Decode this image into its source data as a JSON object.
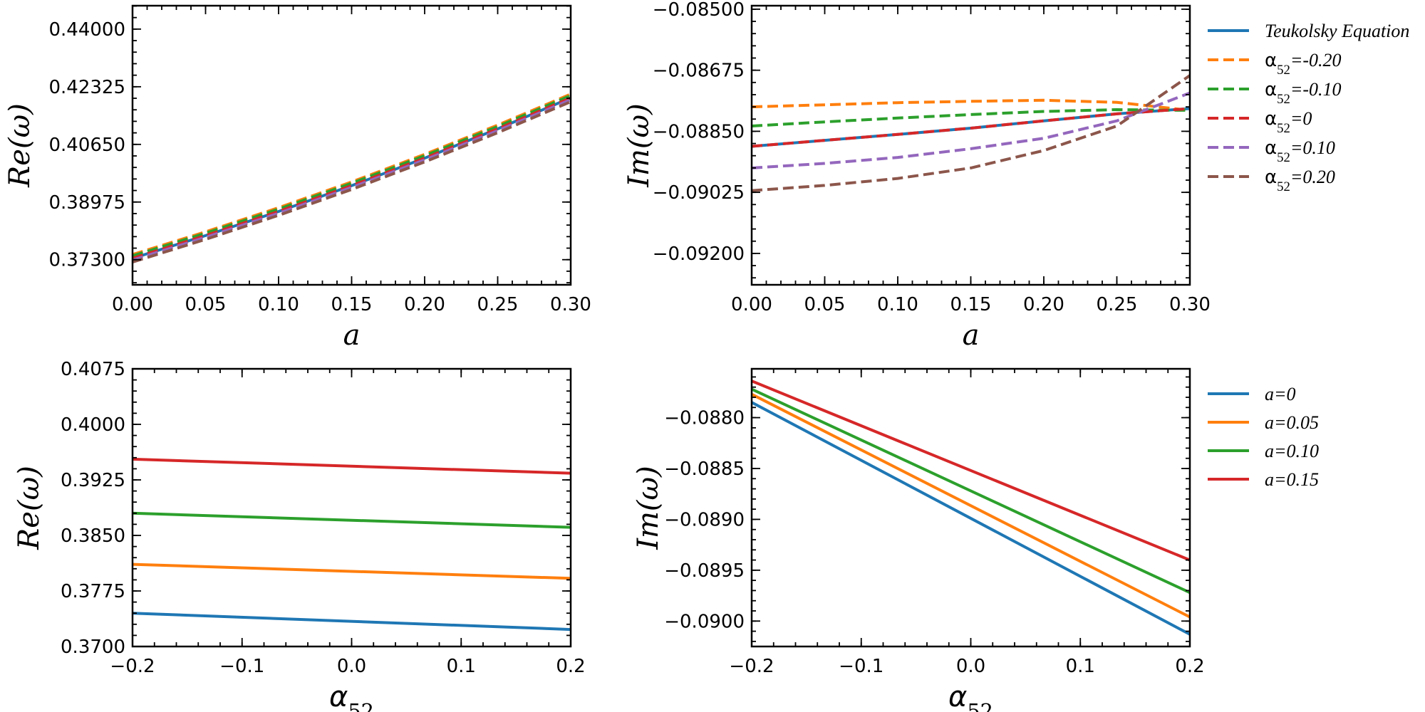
{
  "chart_data": [
    {
      "id": "p1",
      "type": "line",
      "xlabel": "a",
      "ylabel": "Re(ω)",
      "xlim": [
        0,
        0.3
      ],
      "ylim": [
        0.3657,
        0.4468
      ],
      "xticks": [
        "0.00",
        "0.05",
        "0.10",
        "0.15",
        "0.20",
        "0.25",
        "0.30"
      ],
      "yticks": [
        "0.37300",
        "0.38975",
        "0.40650",
        "0.42325",
        "0.44000"
      ],
      "x": [
        0,
        0.05,
        0.1,
        0.15,
        0.2,
        0.25,
        0.3
      ],
      "series": [
        {
          "name": "Teukolsky Equation",
          "color": "#1f77b4",
          "dash": false,
          "values": [
            0.3734,
            0.38,
            0.387,
            0.3945,
            0.4025,
            0.411,
            0.42
          ]
        },
        {
          "name": "α₅₂=-0.20",
          "color": "#ff7f0e",
          "dash": true,
          "values": [
            0.3745,
            0.3811,
            0.3881,
            0.3956,
            0.4036,
            0.4121,
            0.4211
          ]
        },
        {
          "name": "α₅₂=-0.10",
          "color": "#2ca02c",
          "dash": true,
          "values": [
            0.3741,
            0.3807,
            0.3877,
            0.3952,
            0.4032,
            0.4117,
            0.4207
          ]
        },
        {
          "name": "α₅₂=0",
          "color": "#d62728",
          "dash": true,
          "values": [
            0.3734,
            0.38,
            0.387,
            0.3945,
            0.4025,
            0.411,
            0.42
          ]
        },
        {
          "name": "α₅₂=0.10",
          "color": "#9467bd",
          "dash": true,
          "values": [
            0.3729,
            0.3795,
            0.3865,
            0.394,
            0.402,
            0.4105,
            0.4195
          ]
        },
        {
          "name": "α₅₂=0.20",
          "color": "#8c564b",
          "dash": true,
          "values": [
            0.3723,
            0.3789,
            0.3859,
            0.3934,
            0.4014,
            0.4099,
            0.4189
          ]
        }
      ]
    },
    {
      "id": "p2",
      "type": "line",
      "xlabel": "a",
      "ylabel": "Im(ω)",
      "xlim": [
        0,
        0.3
      ],
      "ylim": [
        -0.0929,
        -0.0849
      ],
      "xticks": [
        "0.00",
        "0.05",
        "0.10",
        "0.15",
        "0.20",
        "0.25",
        "0.30"
      ],
      "yticks": [
        "−0.09200",
        "−0.09025",
        "−0.08850",
        "−0.08675",
        "−0.08500"
      ],
      "x": [
        0,
        0.05,
        0.1,
        0.15,
        0.2,
        0.25,
        0.3
      ],
      "series": [
        {
          "name": "Teukolsky Equation",
          "color": "#1f77b4",
          "dash": false,
          "values": [
            -0.08893,
            -0.08876,
            -0.08859,
            -0.08841,
            -0.0882,
            -0.088,
            -0.08785
          ]
        },
        {
          "name": "α₅₂=-0.20",
          "color": "#ff7f0e",
          "dash": true,
          "values": [
            -0.0878,
            -0.08774,
            -0.08768,
            -0.08764,
            -0.08761,
            -0.08767,
            -0.0879
          ]
        },
        {
          "name": "α₅₂=-0.10",
          "color": "#2ca02c",
          "dash": true,
          "values": [
            -0.08835,
            -0.08823,
            -0.08812,
            -0.08802,
            -0.08793,
            -0.08788,
            -0.0879
          ]
        },
        {
          "name": "α₅₂=0",
          "color": "#d62728",
          "dash": true,
          "values": [
            -0.08893,
            -0.08876,
            -0.08859,
            -0.08841,
            -0.0882,
            -0.088,
            -0.08785
          ]
        },
        {
          "name": "α₅₂=0.10",
          "color": "#9467bd",
          "dash": true,
          "values": [
            -0.08955,
            -0.08942,
            -0.08925,
            -0.089,
            -0.0887,
            -0.0882,
            -0.0874
          ]
        },
        {
          "name": "α₅₂=0.20",
          "color": "#8c564b",
          "dash": true,
          "values": [
            -0.0902,
            -0.09005,
            -0.08985,
            -0.08955,
            -0.08905,
            -0.08835,
            -0.0869
          ]
        }
      ]
    },
    {
      "id": "p3",
      "type": "line",
      "xlabel": "α₅₂",
      "ylabel": "Re(ω)",
      "xlim": [
        -0.2,
        0.2
      ],
      "ylim": [
        0.37,
        0.4075
      ],
      "xticks": [
        "−0.2",
        "−0.1",
        "0.0",
        "0.1",
        "0.2"
      ],
      "yticks": [
        "0.3700",
        "0.3775",
        "0.3850",
        "0.3925",
        "0.4000",
        "0.4075"
      ],
      "x": [
        -0.2,
        0.2
      ],
      "series": [
        {
          "name": "a=0",
          "color": "#1f77b4",
          "dash": false,
          "values": [
            0.3745,
            0.3723
          ]
        },
        {
          "name": "a=0.05",
          "color": "#ff7f0e",
          "dash": false,
          "values": [
            0.3811,
            0.3792
          ]
        },
        {
          "name": "a=0.10",
          "color": "#2ca02c",
          "dash": false,
          "values": [
            0.388,
            0.3861
          ]
        },
        {
          "name": "a=0.15",
          "color": "#d62728",
          "dash": false,
          "values": [
            0.3953,
            0.3934
          ]
        }
      ]
    },
    {
      "id": "p4",
      "type": "line",
      "xlabel": "α₅₂",
      "ylabel": "Im(ω)",
      "xlim": [
        -0.2,
        0.2
      ],
      "ylim": [
        -0.09025,
        -0.08752
      ],
      "xticks": [
        "−0.2",
        "−0.1",
        "0.0",
        "0.1",
        "0.2"
      ],
      "yticks": [
        "−0.0900",
        "−0.0895",
        "−0.0890",
        "−0.0885",
        "−0.0880"
      ],
      "x": [
        -0.2,
        0.2
      ],
      "series": [
        {
          "name": "a=0",
          "color": "#1f77b4",
          "dash": false,
          "values": [
            -0.08785,
            -0.09013
          ]
        },
        {
          "name": "a=0.05",
          "color": "#ff7f0e",
          "dash": false,
          "values": [
            -0.08777,
            -0.08996
          ]
        },
        {
          "name": "a=0.10",
          "color": "#2ca02c",
          "dash": false,
          "values": [
            -0.08772,
            -0.08972
          ]
        },
        {
          "name": "a=0.15",
          "color": "#d62728",
          "dash": false,
          "values": [
            -0.08764,
            -0.0894
          ]
        }
      ]
    }
  ]
}
